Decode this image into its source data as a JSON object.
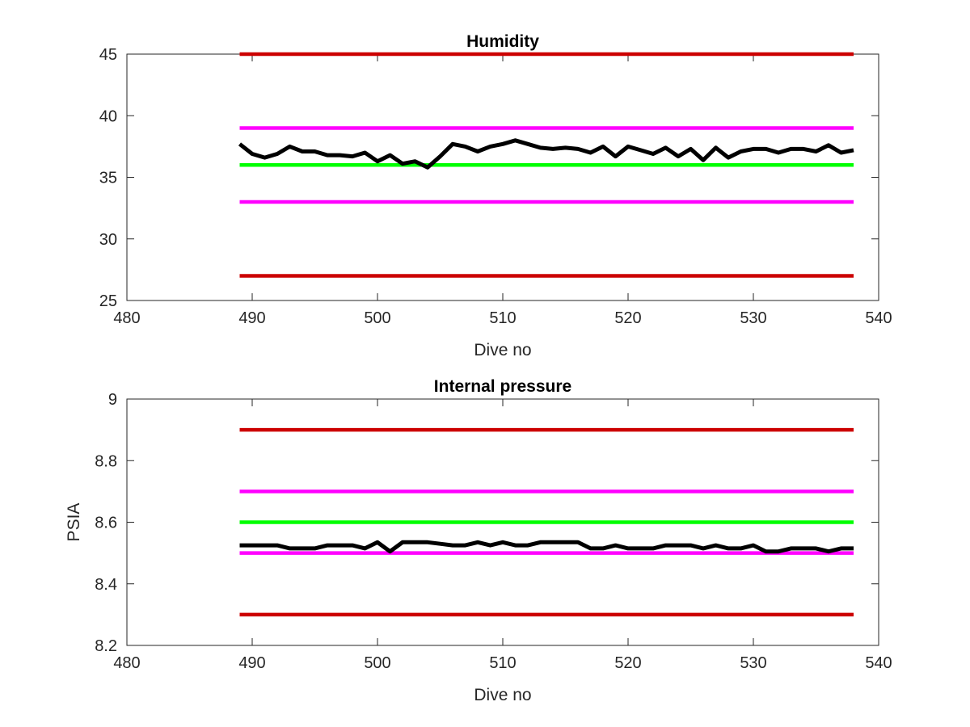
{
  "colors": {
    "red": "#cc0000",
    "magenta": "#ff00ff",
    "green": "#00ff00",
    "black": "#000000",
    "axis": "#262626"
  },
  "chart_data": [
    {
      "type": "line",
      "title": "Humidity",
      "xlabel": "Dive no",
      "ylabel": "",
      "xlim": [
        480,
        540
      ],
      "ylim": [
        25,
        45
      ],
      "xticks": [
        480,
        490,
        500,
        510,
        520,
        530,
        540
      ],
      "xtick_labels": [
        "480",
        "490",
        "500",
        "510",
        "520",
        "530",
        "540"
      ],
      "yticks": [
        25,
        30,
        35,
        40,
        45
      ],
      "ytick_labels": [
        "25",
        "30",
        "35",
        "40",
        "45"
      ],
      "grid": false,
      "series": [
        {
          "color": "red",
          "x": [
            489,
            538
          ],
          "values": [
            45,
            45
          ]
        },
        {
          "color": "magenta",
          "x": [
            489,
            538
          ],
          "values": [
            39,
            39
          ]
        },
        {
          "color": "green",
          "x": [
            489,
            538
          ],
          "values": [
            36,
            36
          ]
        },
        {
          "color": "magenta",
          "x": [
            489,
            538
          ],
          "values": [
            33,
            33
          ]
        },
        {
          "color": "red",
          "x": [
            489,
            538
          ],
          "values": [
            27,
            27
          ]
        },
        {
          "color": "black",
          "x": [
            489,
            490,
            491,
            492,
            493,
            494,
            495,
            496,
            497,
            498,
            499,
            500,
            501,
            502,
            503,
            504,
            505,
            506,
            507,
            508,
            509,
            510,
            511,
            512,
            513,
            514,
            515,
            516,
            517,
            518,
            519,
            520,
            521,
            522,
            523,
            524,
            525,
            526,
            527,
            528,
            529,
            530,
            531,
            532,
            533,
            534,
            535,
            536,
            537,
            538
          ],
          "values": [
            37.7,
            36.9,
            36.6,
            36.9,
            37.5,
            37.1,
            37.1,
            36.8,
            36.8,
            36.7,
            37.0,
            36.3,
            36.8,
            36.1,
            36.3,
            35.8,
            36.7,
            37.7,
            37.5,
            37.1,
            37.5,
            37.7,
            38.0,
            37.7,
            37.4,
            37.3,
            37.4,
            37.3,
            37.0,
            37.5,
            36.7,
            37.5,
            37.2,
            36.9,
            37.4,
            36.7,
            37.3,
            36.4,
            37.4,
            36.6,
            37.1,
            37.3,
            37.3,
            37.0,
            37.3,
            37.3,
            37.1,
            37.6,
            37.0,
            37.2
          ]
        }
      ]
    },
    {
      "type": "line",
      "title": "Internal pressure",
      "xlabel": "Dive no",
      "ylabel": "PSIA",
      "xlim": [
        480,
        540
      ],
      "ylim": [
        8.2,
        9
      ],
      "xticks": [
        480,
        490,
        500,
        510,
        520,
        530,
        540
      ],
      "xtick_labels": [
        "480",
        "490",
        "500",
        "510",
        "520",
        "530",
        "540"
      ],
      "yticks": [
        8.2,
        8.4,
        8.6,
        8.8,
        9
      ],
      "ytick_labels": [
        "8.2",
        "8.4",
        "8.6",
        "8.8",
        "9"
      ],
      "grid": false,
      "series": [
        {
          "color": "red",
          "x": [
            489,
            538
          ],
          "values": [
            8.9,
            8.9
          ]
        },
        {
          "color": "magenta",
          "x": [
            489,
            538
          ],
          "values": [
            8.7,
            8.7
          ]
        },
        {
          "color": "green",
          "x": [
            489,
            538
          ],
          "values": [
            8.6,
            8.6
          ]
        },
        {
          "color": "magenta",
          "x": [
            489,
            538
          ],
          "values": [
            8.5,
            8.5
          ]
        },
        {
          "color": "red",
          "x": [
            489,
            538
          ],
          "values": [
            8.3,
            8.3
          ]
        },
        {
          "color": "black",
          "x": [
            489,
            490,
            491,
            492,
            493,
            494,
            495,
            496,
            497,
            498,
            499,
            500,
            501,
            502,
            503,
            504,
            505,
            506,
            507,
            508,
            509,
            510,
            511,
            512,
            513,
            514,
            515,
            516,
            517,
            518,
            519,
            520,
            521,
            522,
            523,
            524,
            525,
            526,
            527,
            528,
            529,
            530,
            531,
            532,
            533,
            534,
            535,
            536,
            537,
            538
          ],
          "values": [
            8.525,
            8.525,
            8.525,
            8.525,
            8.515,
            8.515,
            8.515,
            8.525,
            8.525,
            8.525,
            8.515,
            8.535,
            8.505,
            8.535,
            8.535,
            8.535,
            8.53,
            8.525,
            8.525,
            8.535,
            8.525,
            8.535,
            8.525,
            8.525,
            8.535,
            8.535,
            8.535,
            8.535,
            8.515,
            8.515,
            8.525,
            8.515,
            8.515,
            8.515,
            8.525,
            8.525,
            8.525,
            8.515,
            8.525,
            8.515,
            8.515,
            8.525,
            8.505,
            8.505,
            8.515,
            8.515,
            8.515,
            8.505,
            8.515,
            8.515
          ]
        }
      ]
    }
  ]
}
